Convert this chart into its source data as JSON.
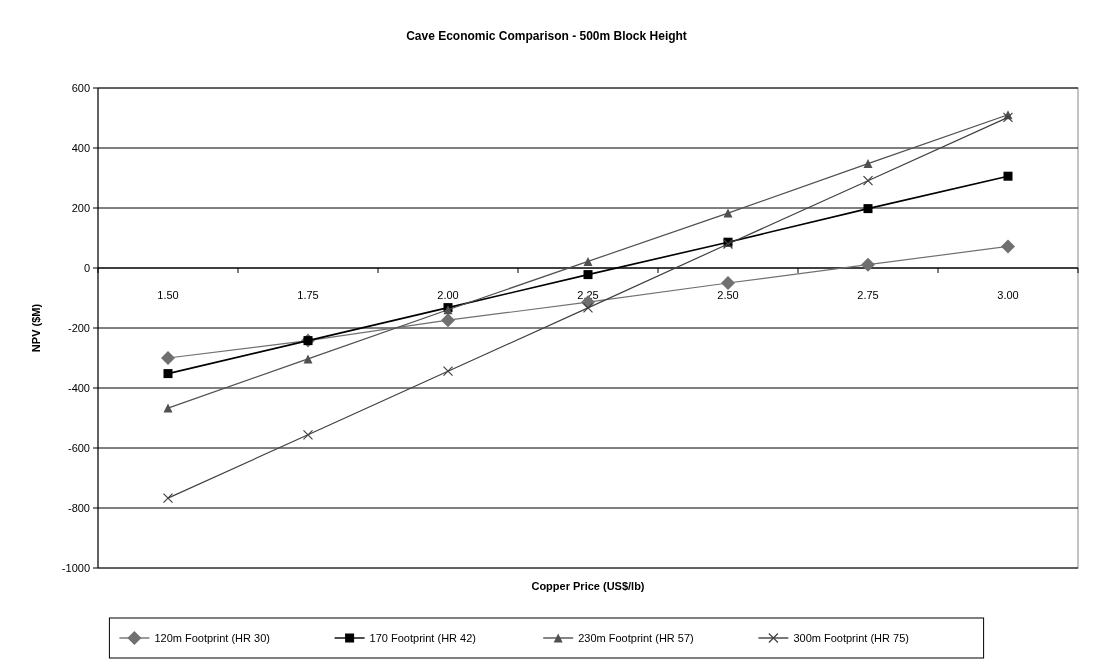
{
  "chart_data": {
    "type": "line",
    "title": "Cave Economic Comparison - 500m Block Height",
    "xlabel": "Copper Price (US$/lb)",
    "ylabel": "NPV ($M)",
    "categories": [
      "1.50",
      "1.75",
      "2.00",
      "2.25",
      "2.50",
      "2.75",
      "3.00"
    ],
    "series": [
      {
        "name": "120m Footprint (HR 30)",
        "color": "#707070",
        "marker": "diamond",
        "values": [
          -300,
          -242,
          -174,
          -114,
          -50,
          11,
          72
        ]
      },
      {
        "name": "170 Footprint (HR 42)",
        "color": "#000000",
        "marker": "square",
        "values": [
          -352,
          -242,
          -132,
          -22,
          86,
          198,
          306
        ]
      },
      {
        "name": "230m Footprint (HR 57)",
        "color": "#505050",
        "marker": "triangle",
        "values": [
          -467,
          -303,
          -139,
          22,
          183,
          348,
          511
        ]
      },
      {
        "name": "300m Footprint (HR 75)",
        "color": "#404040",
        "marker": "cross",
        "values": [
          -767,
          -556,
          -344,
          -133,
          80,
          291,
          502
        ]
      }
    ],
    "ylim": [
      -1000,
      600
    ],
    "yticks": [
      -1000,
      -800,
      -600,
      -400,
      -200,
      0,
      200,
      400,
      600
    ],
    "grid": "y",
    "legend": "bottom",
    "line_style": "solid"
  }
}
